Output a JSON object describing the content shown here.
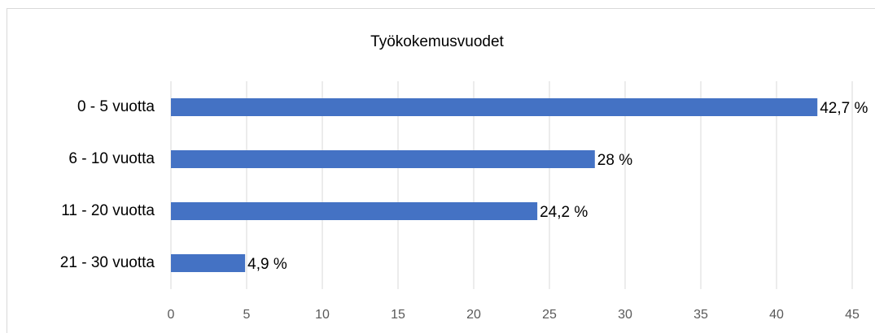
{
  "chart_data": {
    "type": "barh",
    "title": "Työkokemusvuodet",
    "categories": [
      "0 - 5 vuotta",
      "6 - 10 vuotta",
      "11 - 20 vuotta",
      "21 - 30 vuotta"
    ],
    "values": [
      42.7,
      28,
      24.2,
      4.9
    ],
    "value_labels": [
      "42,7 %",
      "28 %",
      "24,2 %",
      "4,9 %"
    ],
    "color": "#4472c4",
    "xlim": [
      0,
      45
    ],
    "xticks": [
      0,
      5,
      10,
      15,
      20,
      25,
      30,
      35,
      40,
      45
    ],
    "grid": true
  }
}
